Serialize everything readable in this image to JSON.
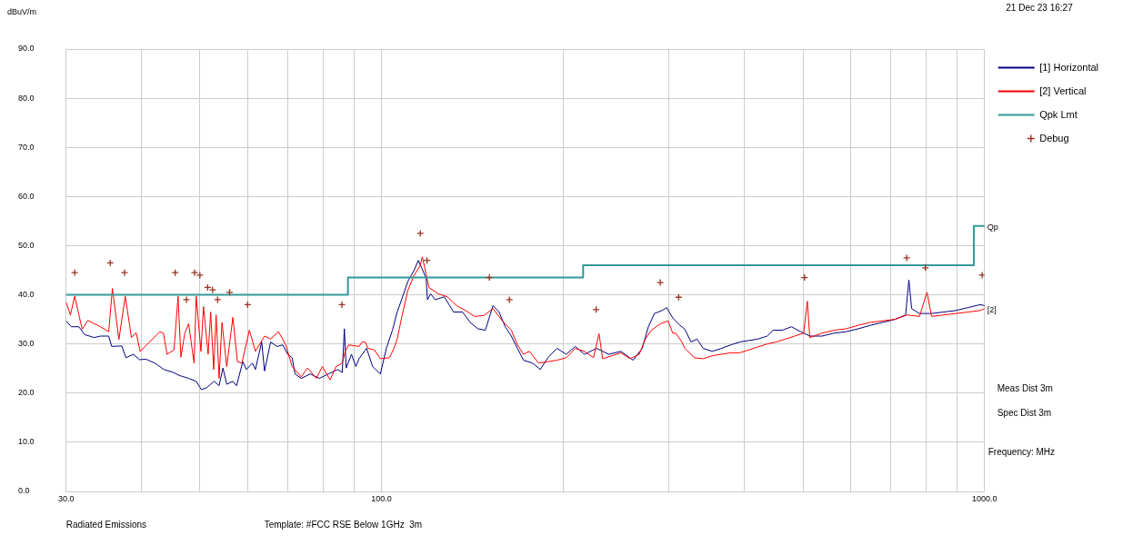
{
  "chart_data": {
    "type": "line",
    "xlabel": "Frequency: MHz",
    "ylabel": "dBuV/m",
    "annotations": [
      "21 Dec 23 16:27",
      "Meas Dist 3m",
      "Spec Dist 3m",
      "Radiated Emissions",
      "Template: #FCC RSE Below 1GHz  3m",
      {
        "text": "Qp",
        "x": 1000,
        "y": 54
      },
      {
        "text": "[2]",
        "x": 1000,
        "y": 37.2
      }
    ],
    "log": "x",
    "grid": true,
    "legend": "top right",
    "xlim": [
      30,
      1000
    ],
    "xticks": [
      {
        "value": 30,
        "label": "30.0"
      },
      {
        "value": 40,
        "label": null
      },
      {
        "value": 50,
        "label": null
      },
      {
        "value": 60,
        "label": null
      },
      {
        "value": 70,
        "label": null
      },
      {
        "value": 80,
        "label": null
      },
      {
        "value": 90,
        "label": null
      },
      {
        "value": 100,
        "label": "100.0"
      },
      {
        "value": 200,
        "label": null
      },
      {
        "value": 300,
        "label": null
      },
      {
        "value": 400,
        "label": null
      },
      {
        "value": 500,
        "label": null
      },
      {
        "value": 600,
        "label": null
      },
      {
        "value": 700,
        "label": null
      },
      {
        "value": 800,
        "label": null
      },
      {
        "value": 900,
        "label": null
      },
      {
        "value": 1000,
        "label": "1000.0"
      }
    ],
    "ylim": [
      0,
      90
    ],
    "yticks": [
      {
        "value": 0,
        "label": "0.0"
      },
      {
        "value": 10,
        "label": "10.0"
      },
      {
        "value": 20,
        "label": "20.0"
      },
      {
        "value": 30,
        "label": "30.0"
      },
      {
        "value": 40,
        "label": "40.0"
      },
      {
        "value": 50,
        "label": "50.0"
      },
      {
        "value": 60,
        "label": "60.0"
      },
      {
        "value": 70,
        "label": "70.0"
      },
      {
        "value": 80,
        "label": "80.0"
      },
      {
        "value": 90,
        "label": "90.0"
      }
    ],
    "series": [
      {
        "name": "[1] Horizontal",
        "color": "#000080",
        "x": [
          30.0,
          30.6,
          31.5,
          32.2,
          33.4,
          34.2,
          35.3,
          35.7,
          37.1,
          37.7,
          38.8,
          39.7,
          40.7,
          42.1,
          43.6,
          45.2,
          46.2,
          47.9,
          49.3,
          50.3,
          51.3,
          52.8,
          53.8,
          54.6,
          55.4,
          56.7,
          57.5,
          58.9,
          59.7,
          61.1,
          61.8,
          63.3,
          64.0,
          65.5,
          67.1,
          68.6,
          69.9,
          71.1,
          71.9,
          73.6,
          76.2,
          78.9,
          81.7,
          84.6,
          86.1,
          86.8,
          87.4,
          89.2,
          90.7,
          91.8,
          94.5,
          96.7,
          99.6,
          101.9,
          104.3,
          106.2,
          108.0,
          110.6,
          113.2,
          115.1,
          117.2,
          118.6,
          119.2,
          120.7,
          122.8,
          127.1,
          131.7,
          136.3,
          140.3,
          144.5,
          148.7,
          153.1,
          156.7,
          160.4,
          164.2,
          168.1,
          172.0,
          178.1,
          183.4,
          188.8,
          195.5,
          202.5,
          209.6,
          217.0,
          227.3,
          238.2,
          249.5,
          261.4,
          270.6,
          277.1,
          283.6,
          291.9,
          297.1,
          304.1,
          311.2,
          318.5,
          326.1,
          333.7,
          341.6,
          353.7,
          366.3,
          379.3,
          392.7,
          406.7,
          421.1,
          436.1,
          446.3,
          462.2,
          478.6,
          495.6,
          513.2,
          537.5,
          563.0,
          590.0,
          617.9,
          647.2,
          678.2,
          710.3,
          739.9,
          749.3,
          757.1,
          780.0,
          817.1,
          855.8,
          896.7,
          939.3,
          983.9,
          1000
        ],
        "values": [
          34.7,
          33.5,
          33.5,
          31.9,
          31.3,
          31.6,
          31.6,
          29.5,
          29.6,
          27.2,
          27.9,
          26.8,
          26.9,
          26.1,
          24.8,
          24.2,
          23.6,
          23.0,
          22.4,
          20.7,
          21.1,
          22.4,
          21.5,
          25.1,
          21.8,
          22.4,
          21.5,
          26.4,
          24.8,
          26.1,
          24.8,
          30.4,
          24.5,
          30.4,
          29.5,
          29.8,
          27.9,
          27.2,
          23.9,
          23.0,
          23.9,
          23.0,
          23.9,
          24.8,
          24.2,
          33.1,
          25.1,
          27.9,
          25.4,
          27.0,
          29.1,
          25.4,
          23.9,
          29.1,
          32.8,
          36.5,
          39.0,
          42.7,
          44.9,
          47.0,
          44.9,
          43.3,
          39.0,
          40.2,
          39.0,
          39.6,
          36.5,
          36.5,
          34.4,
          33.1,
          32.8,
          37.8,
          36.5,
          33.5,
          31.6,
          29.1,
          26.7,
          26.1,
          24.8,
          27.2,
          29.1,
          27.9,
          29.5,
          27.9,
          29.1,
          27.9,
          28.5,
          26.7,
          29.1,
          33.5,
          36.2,
          36.8,
          37.4,
          35.3,
          34.0,
          33.0,
          30.4,
          31.0,
          29.1,
          28.5,
          29.1,
          29.8,
          30.4,
          30.7,
          31.0,
          31.6,
          32.8,
          32.8,
          33.5,
          32.5,
          31.6,
          31.6,
          32.2,
          32.5,
          33.1,
          33.8,
          34.4,
          35.0,
          35.9,
          43.0,
          37.2,
          36.2,
          36.2,
          36.5,
          36.8,
          37.4,
          38.0,
          37.8
        ]
      },
      {
        "name": "[2] Vertical",
        "color": "#ff0000",
        "x": [
          30.0,
          30.5,
          31.0,
          31.9,
          32.6,
          34.2,
          35.3,
          35.8,
          36.7,
          37.6,
          38.5,
          39.2,
          39.8,
          42.9,
          43.5,
          44.1,
          45.3,
          46.0,
          46.5,
          47.2,
          47.9,
          48.9,
          49.3,
          50.2,
          50.7,
          51.6,
          52.1,
          52.7,
          53.2,
          53.8,
          54.4,
          55.4,
          56.7,
          57.7,
          58.7,
          60.4,
          61.8,
          64.0,
          65.5,
          67.5,
          69.4,
          71.1,
          73.6,
          75.4,
          78.0,
          79.8,
          82.2,
          84.1,
          86.1,
          87.1,
          88.2,
          91.8,
          92.9,
          94.0,
          95.0,
          97.3,
          99.6,
          103.1,
          104.9,
          106.2,
          108.0,
          110.6,
          113.2,
          115.8,
          116.9,
          118.6,
          119.9,
          124.2,
          128.6,
          133.2,
          137.9,
          142.8,
          147.9,
          153.1,
          158.6,
          164.2,
          168.1,
          172.0,
          176.0,
          182.3,
          188.8,
          195.5,
          202.5,
          209.6,
          217.0,
          224.7,
          229.5,
          232.7,
          241.0,
          249.5,
          258.4,
          267.6,
          273.9,
          280.3,
          290.2,
          298.8,
          304.1,
          307.6,
          314.9,
          318.5,
          326.1,
          329.9,
          341.6,
          353.7,
          366.3,
          379.3,
          392.7,
          406.7,
          421.1,
          436.1,
          451.5,
          467.6,
          484.2,
          501.3,
          508.4,
          513.2,
          537.5,
          563.0,
          590.0,
          617.9,
          647.2,
          678.2,
          710.3,
          744.1,
          780.0,
          802.9,
          817.1,
          855.8,
          896.7,
          939.3,
          983.9,
          1000
        ],
        "values": [
          38.5,
          35.9,
          39.7,
          33.0,
          34.8,
          33.5,
          32.5,
          41.3,
          30.9,
          39.7,
          31.3,
          32.3,
          28.5,
          32.5,
          32.2,
          27.9,
          28.8,
          39.7,
          27.3,
          32.2,
          34.1,
          26.1,
          39.7,
          28.5,
          37.6,
          27.9,
          36.5,
          24.8,
          35.9,
          23.0,
          34.4,
          25.4,
          35.4,
          26.4,
          26.1,
          32.8,
          28.5,
          31.6,
          31.0,
          32.5,
          29.8,
          25.4,
          23.3,
          25.1,
          23.0,
          25.4,
          22.7,
          25.4,
          26.1,
          28.5,
          29.8,
          29.5,
          30.4,
          30.4,
          29.1,
          28.8,
          27.0,
          27.2,
          29.1,
          31.0,
          35.3,
          40.9,
          43.9,
          45.8,
          47.7,
          44.2,
          41.5,
          40.2,
          39.6,
          37.8,
          36.8,
          35.6,
          35.8,
          37.2,
          34.7,
          32.8,
          29.8,
          27.9,
          28.5,
          26.1,
          26.4,
          26.7,
          27.2,
          29.1,
          28.5,
          27.2,
          32.1,
          27.0,
          27.6,
          28.2,
          27.0,
          27.9,
          31.0,
          32.8,
          34.1,
          34.7,
          32.2,
          32.2,
          30.4,
          29.1,
          27.9,
          27.2,
          27.0,
          27.6,
          27.9,
          28.2,
          28.2,
          28.8,
          29.4,
          30.0,
          30.4,
          31.0,
          31.6,
          32.2,
          38.7,
          31.3,
          32.2,
          32.8,
          33.1,
          33.8,
          34.4,
          34.7,
          35.0,
          35.9,
          35.6,
          40.5,
          35.6,
          35.9,
          36.2,
          36.5,
          36.8,
          37.2
        ]
      },
      {
        "name": "Qpk Lmt",
        "color": "#339999",
        "type": "step",
        "x": [
          30,
          88,
          216,
          960,
          1000
        ],
        "values": [
          40,
          43.5,
          46,
          54,
          54
        ]
      },
      {
        "name": "Debug",
        "color": "#993322",
        "type": "scatter",
        "marker": "cross",
        "x": [
          31,
          35.5,
          37.5,
          45.5,
          47.5,
          49,
          50,
          51.5,
          52.5,
          53.5,
          56,
          60,
          86,
          116,
          119,
          151,
          163,
          227,
          290,
          311,
          503,
          743,
          798,
          991
        ],
        "values": [
          44.5,
          46.5,
          44.5,
          44.5,
          39,
          44.5,
          44,
          41.5,
          41,
          39,
          40.5,
          38,
          38,
          52.5,
          47,
          43.5,
          39,
          37,
          42.5,
          39.5,
          43.5,
          47.5,
          45.5,
          44
        ]
      }
    ]
  }
}
